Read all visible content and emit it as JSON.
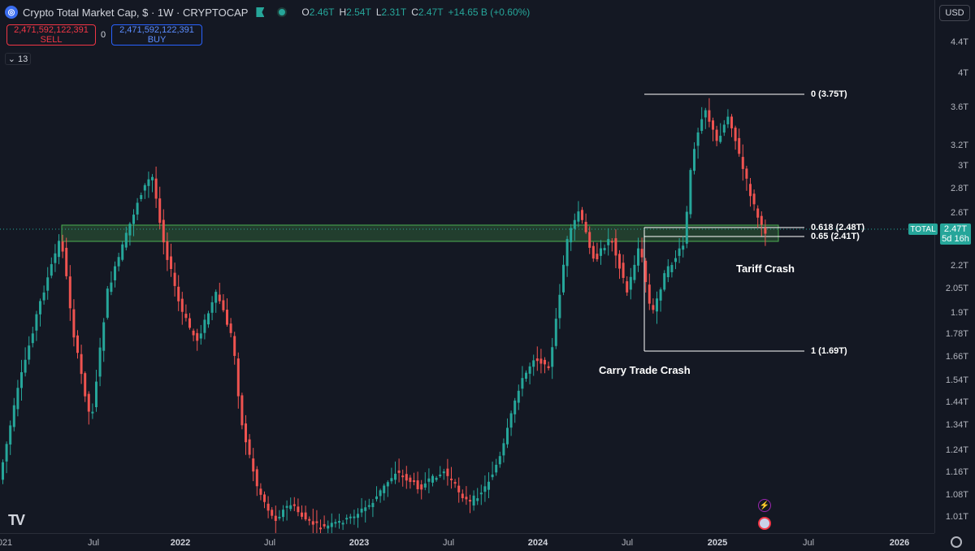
{
  "header": {
    "symbol_title": "Crypto Total Market Cap, $ · 1W · CRYPTOCAP",
    "ohlc": [
      {
        "k": "O",
        "v": "2.46T"
      },
      {
        "k": "H",
        "v": "2.54T"
      },
      {
        "k": "L",
        "v": "2.31T"
      },
      {
        "k": "C",
        "v": "2.47T"
      }
    ],
    "change": "+14.65 B (+0.60%)"
  },
  "trade": {
    "sell_price": "2,471,592,122,391",
    "sell_label": "SELL",
    "spread": "0",
    "buy_price": "2,471,592,122,391",
    "buy_label": "BUY"
  },
  "indicators_count": "13",
  "currency": "USD",
  "price_scale": [
    "4.4T",
    "4T",
    "3.6T",
    "3.2T",
    "3T",
    "2.8T",
    "2.6T",
    "2.2T",
    "2.05T",
    "1.9T",
    "1.78T",
    "1.66T",
    "1.54T",
    "1.44T",
    "1.34T",
    "1.24T",
    "1.16T",
    "1.08T",
    "1.01T"
  ],
  "last_price": {
    "value": "2.47T",
    "countdown": "5d 16h",
    "series_tag": "TOTAL"
  },
  "time_scale": [
    "021",
    "Jul",
    "2022",
    "Jul",
    "2023",
    "Jul",
    "2024",
    "Jul",
    "2025",
    "Jul",
    "2026"
  ],
  "fib_levels": [
    {
      "label": "0 (3.75T)"
    },
    {
      "label": "0.618 (2.48T)"
    },
    {
      "label": "0.65 (2.41T)"
    },
    {
      "label": "1 (1.69T)"
    }
  ],
  "annotations": {
    "tariff": "Tariff Crash",
    "carry": "Carry Trade Crash"
  },
  "colors": {
    "up": "#26a69a",
    "down": "#ef5350",
    "zone": "#4caf50",
    "background": "#131722"
  },
  "chart_data": {
    "type": "line",
    "title": "Crypto Total Market Cap, $ · 1W · CRYPTOCAP",
    "x": [
      "2021-06",
      "2021-11",
      "2022-06",
      "2022-12",
      "2023-06",
      "2023-12",
      "2024-03",
      "2024-08",
      "2024-12",
      "2025-01",
      "2025-04"
    ],
    "series": [
      {
        "values": [
          1.3,
          2.95,
          0.9,
          0.78,
          1.15,
          1.65,
          2.7,
          2.0,
          3.75,
          3.6,
          2.47
        ]
      }
    ],
    "ylabel": "",
    "xlabel": "",
    "scale": "log",
    "ylim": [
      0.98,
      4.6
    ],
    "zone": [
      2.41,
      2.5
    ],
    "grid": false
  }
}
